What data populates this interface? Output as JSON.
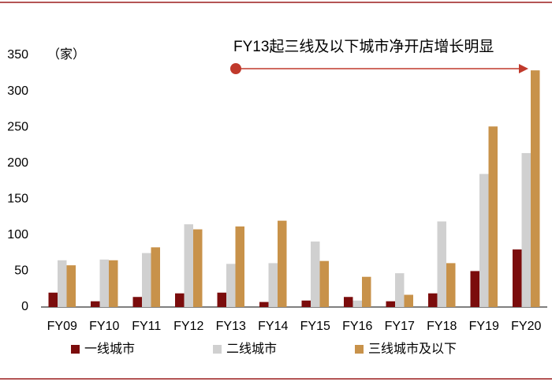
{
  "chart_data": {
    "type": "bar",
    "unit_label": "（家）",
    "annotation": "FY13起三线及以下城市净开店增长明显",
    "categories": [
      "FY09",
      "FY10",
      "FY11",
      "FY12",
      "FY13",
      "FY14",
      "FY15",
      "FY16",
      "FY17",
      "FY18",
      "FY19",
      "FY20"
    ],
    "series": [
      {
        "name": "一线城市",
        "color": "#7b0c0c",
        "values": [
          20,
          8,
          14,
          19,
          20,
          7,
          9,
          14,
          8,
          19,
          50,
          80
        ]
      },
      {
        "name": "二线城市",
        "color": "#d0d0d0",
        "values": [
          65,
          66,
          75,
          115,
          60,
          61,
          91,
          9,
          47,
          119,
          185,
          214
        ]
      },
      {
        "name": "三线城市及以下",
        "color": "#c8924a",
        "values": [
          58,
          65,
          83,
          108,
          112,
          120,
          64,
          42,
          17,
          61,
          251,
          329
        ]
      }
    ],
    "ylim": [
      0,
      350
    ],
    "yticks": [
      0,
      50,
      100,
      150,
      200,
      250,
      300,
      350
    ],
    "grid": false,
    "legend": "bottom"
  }
}
